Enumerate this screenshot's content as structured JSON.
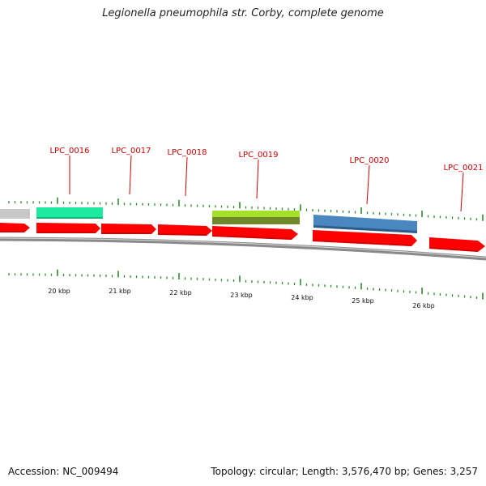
{
  "title": "Legionella pneumophila str. Corby, complete genome",
  "footer": {
    "accession": "Accession: NC_009494",
    "summary": "Topology: circular; Length: 3,576,470 bp; Genes: 3,257"
  },
  "colors": {
    "label_red": "#cc0000",
    "forward_gene": "#ff0000",
    "backbone": "#8a8a8a",
    "tick_green": "#2e8b2e",
    "gray_feature": "#c8c8c8",
    "teal_feature": "#1de9a0",
    "lime_feature": "#a5e02a",
    "olive_feature": "#6f8a2a",
    "blue_feature": "#4a86c0"
  },
  "scale": {
    "labels": [
      "20 kbp",
      "21 kbp",
      "22 kbp",
      "23 kbp",
      "24 kbp",
      "25 kbp",
      "26 kbp"
    ]
  },
  "gene_labels": [
    "LPC_0016",
    "LPC_0017",
    "LPC_0018",
    "LPC_0019",
    "LPC_0020",
    "LPC_0021"
  ]
}
